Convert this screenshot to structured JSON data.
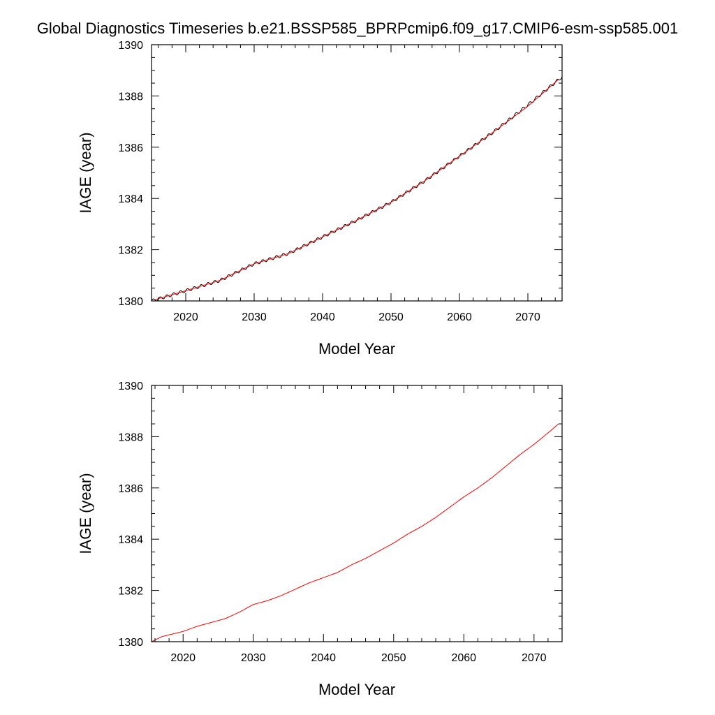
{
  "figure": {
    "title": "Global Diagnostics Timeseries b.e21.BSSP585_BPRPcmip6.f09_g17.CMIP6-esm-ssp585.001"
  },
  "chart_data": [
    {
      "type": "line",
      "title": "Global Diagnostics Timeseries b.e21.BSSP585_BPRPcmip6.f09_g17.CMIP6-esm-ssp585.001",
      "xlabel": "Model Year",
      "ylabel": "IAGE (year)",
      "xlim": [
        2015,
        2075
      ],
      "ylim": [
        1380,
        1390
      ],
      "xticks": [
        2020,
        2030,
        2040,
        2050,
        2060,
        2070
      ],
      "xtick_labels": [
        "2020",
        "2030",
        "2040",
        "2050",
        "2060",
        "2070"
      ],
      "yticks": [
        1380,
        1382,
        1384,
        1386,
        1388,
        1390
      ],
      "ytick_labels": [
        "1380",
        "1382",
        "1384",
        "1386",
        "1388",
        "1390"
      ],
      "grid": false,
      "series": [
        {
          "kind": "monthly",
          "color": "#000000",
          "seasonal_amplitude": 0.06,
          "x": [
            2015,
            2020,
            2025,
            2030,
            2035,
            2040,
            2045,
            2050,
            2055,
            2060,
            2065,
            2070,
            2075
          ],
          "y": [
            1380.0,
            1380.4,
            1380.8,
            1381.45,
            1381.85,
            1382.5,
            1383.15,
            1383.85,
            1384.7,
            1385.65,
            1386.6,
            1387.65,
            1388.75
          ]
        },
        {
          "kind": "annual",
          "color": "#ff0000",
          "x": [
            2015.5,
            2020,
            2025,
            2030,
            2035,
            2040,
            2045,
            2050,
            2055,
            2060,
            2065,
            2070,
            2074.5
          ],
          "y": [
            1380.05,
            1380.4,
            1380.8,
            1381.45,
            1381.85,
            1382.5,
            1383.15,
            1383.85,
            1384.7,
            1385.65,
            1386.6,
            1387.6,
            1388.65
          ]
        }
      ]
    },
    {
      "type": "line",
      "title": "",
      "xlabel": "Model Year",
      "ylabel": "IAGE (year)",
      "xlim": [
        2015.5,
        2074
      ],
      "ylim": [
        1380,
        1390
      ],
      "xticks": [
        2020,
        2030,
        2040,
        2050,
        2060,
        2070
      ],
      "xtick_labels": [
        "2020",
        "2030",
        "2040",
        "2050",
        "2060",
        "2070"
      ],
      "yticks": [
        1380,
        1382,
        1384,
        1386,
        1388,
        1390
      ],
      "ytick_labels": [
        "1380",
        "1382",
        "1384",
        "1386",
        "1388",
        "1390"
      ],
      "grid": false,
      "series": [
        {
          "kind": "annual",
          "color": "#ff0000",
          "x": [
            2015.5,
            2017,
            2020,
            2022,
            2024,
            2026,
            2028,
            2030,
            2032,
            2034,
            2036,
            2038,
            2040,
            2042,
            2044,
            2046,
            2048,
            2050,
            2052,
            2054,
            2056,
            2058,
            2060,
            2062,
            2064,
            2066,
            2068,
            2070,
            2072,
            2073.5
          ],
          "y": [
            1380.0,
            1380.2,
            1380.4,
            1380.6,
            1380.75,
            1380.9,
            1381.15,
            1381.45,
            1381.6,
            1381.8,
            1382.05,
            1382.3,
            1382.5,
            1382.7,
            1383.0,
            1383.25,
            1383.55,
            1383.85,
            1384.2,
            1384.5,
            1384.85,
            1385.25,
            1385.65,
            1386.0,
            1386.4,
            1386.85,
            1387.3,
            1387.7,
            1388.15,
            1388.5
          ]
        }
      ]
    }
  ]
}
